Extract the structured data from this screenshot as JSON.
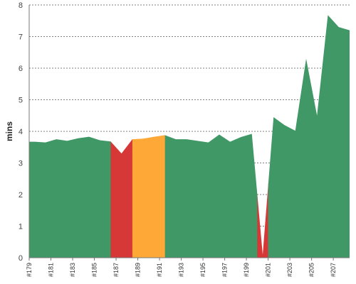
{
  "chart_data": {
    "type": "area",
    "ylabel": "mins",
    "ylim": [
      0,
      8
    ],
    "grid": true,
    "yticks": [
      0,
      1,
      2,
      3,
      4,
      5,
      6,
      7,
      8
    ],
    "x_tick_labels": [
      "#179",
      "#181",
      "#183",
      "#185",
      "#187",
      "#189",
      "#191",
      "#193",
      "#195",
      "#197",
      "#199",
      "#201",
      "#203",
      "#205",
      "#207"
    ],
    "colors": {
      "green": "#3f9866",
      "red": "#d63838",
      "orange": "#fda837"
    },
    "points": [
      {
        "x": 179.0,
        "y": 3.67
      },
      {
        "x": 179.5,
        "y": 3.67
      },
      {
        "x": 180.5,
        "y": 3.65
      },
      {
        "x": 181.5,
        "y": 3.75
      },
      {
        "x": 182.5,
        "y": 3.7
      },
      {
        "x": 183.5,
        "y": 3.78
      },
      {
        "x": 184.5,
        "y": 3.83
      },
      {
        "x": 185.5,
        "y": 3.72
      },
      {
        "x": 186.5,
        "y": 3.68
      },
      {
        "x": 187.5,
        "y": 3.3
      },
      {
        "x": 188.5,
        "y": 3.75
      },
      {
        "x": 189.5,
        "y": 3.77
      },
      {
        "x": 190.5,
        "y": 3.83
      },
      {
        "x": 191.5,
        "y": 3.88
      },
      {
        "x": 192.5,
        "y": 3.75
      },
      {
        "x": 193.5,
        "y": 3.75
      },
      {
        "x": 194.5,
        "y": 3.7
      },
      {
        "x": 195.5,
        "y": 3.65
      },
      {
        "x": 196.5,
        "y": 3.9
      },
      {
        "x": 197.5,
        "y": 3.67
      },
      {
        "x": 198.5,
        "y": 3.82
      },
      {
        "x": 199.5,
        "y": 3.92
      },
      {
        "x": 200.5,
        "y": 0.1
      },
      {
        "x": 201.5,
        "y": 4.45
      },
      {
        "x": 202.5,
        "y": 4.2
      },
      {
        "x": 203.5,
        "y": 4.02
      },
      {
        "x": 204.5,
        "y": 6.3
      },
      {
        "x": 205.5,
        "y": 4.5
      },
      {
        "x": 206.5,
        "y": 7.68
      },
      {
        "x": 207.5,
        "y": 7.3
      },
      {
        "x": 208.5,
        "y": 7.2
      }
    ],
    "color_bands": [
      {
        "from": 179.0,
        "to": 186.5,
        "color": "green"
      },
      {
        "from": 186.5,
        "to": 188.5,
        "color": "red"
      },
      {
        "from": 188.5,
        "to": 191.5,
        "color": "orange"
      },
      {
        "from": 191.5,
        "to": 200.0,
        "color": "green"
      },
      {
        "from": 200.0,
        "to": 201.0,
        "color": "red"
      },
      {
        "from": 201.0,
        "to": 208.5,
        "color": "green"
      }
    ]
  }
}
